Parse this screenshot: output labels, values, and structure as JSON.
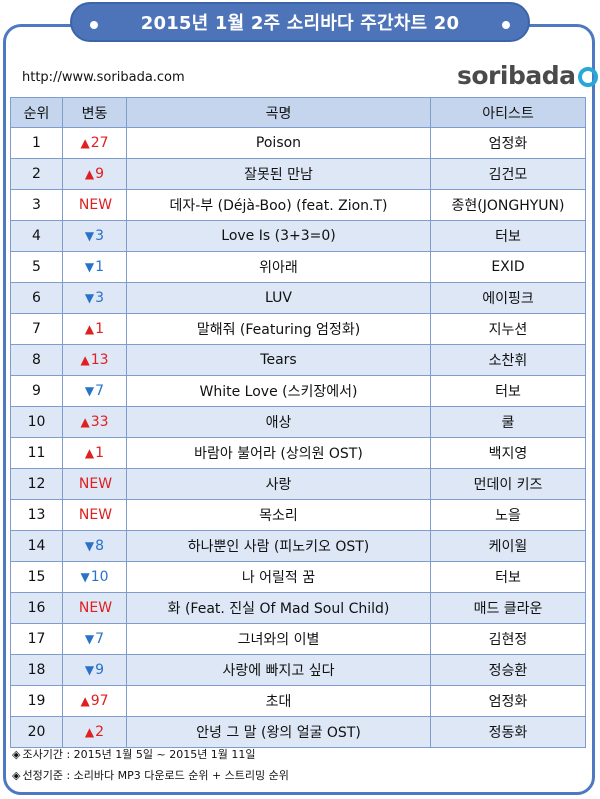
{
  "title": "2015년  1월  2주 소리바다 주간차트 20",
  "url": "http://www.soribada.com",
  "logo_text": "soribada",
  "headers": {
    "rank": "순위",
    "change": "변동",
    "song": "곡명",
    "artist": "아티스트"
  },
  "colors": {
    "up": "#e02020",
    "down": "#2a72c9",
    "new": "#e02020",
    "accent": "#4d74b8"
  },
  "rows": [
    {
      "rank": "1",
      "dir": "up",
      "arrow": "▲",
      "chg": "27",
      "song": "Poison",
      "artist": "엄정화"
    },
    {
      "rank": "2",
      "dir": "up",
      "arrow": "▲",
      "chg": "9",
      "song": "잘못된 만남",
      "artist": "김건모"
    },
    {
      "rank": "3",
      "dir": "new",
      "arrow": "",
      "chg": "NEW",
      "song": "데자-부 (Déjà-Boo) (feat. Zion.T)",
      "artist": "종현(JONGHYUN)"
    },
    {
      "rank": "4",
      "dir": "down",
      "arrow": "▼",
      "chg": "3",
      "song": "Love Is (3+3=0)",
      "artist": "터보"
    },
    {
      "rank": "5",
      "dir": "down",
      "arrow": "▼",
      "chg": "1",
      "song": "위아래",
      "artist": "EXID"
    },
    {
      "rank": "6",
      "dir": "down",
      "arrow": "▼",
      "chg": "3",
      "song": "LUV",
      "artist": "에이핑크"
    },
    {
      "rank": "7",
      "dir": "up",
      "arrow": "▲",
      "chg": "1",
      "song": "말해줘 (Featuring 엄정화)",
      "artist": "지누션"
    },
    {
      "rank": "8",
      "dir": "up",
      "arrow": "▲",
      "chg": "13",
      "song": "Tears",
      "artist": "소찬휘"
    },
    {
      "rank": "9",
      "dir": "down",
      "arrow": "▼",
      "chg": "7",
      "song": "White Love (스키장에서)",
      "artist": "터보"
    },
    {
      "rank": "10",
      "dir": "up",
      "arrow": "▲",
      "chg": "33",
      "song": "애상",
      "artist": "쿨"
    },
    {
      "rank": "11",
      "dir": "up",
      "arrow": "▲",
      "chg": "1",
      "song": "바람아 불어라 (상의원 OST)",
      "artist": "백지영"
    },
    {
      "rank": "12",
      "dir": "new",
      "arrow": "",
      "chg": "NEW",
      "song": "사랑",
      "artist": "먼데이 키즈"
    },
    {
      "rank": "13",
      "dir": "new",
      "arrow": "",
      "chg": "NEW",
      "song": "목소리",
      "artist": "노을"
    },
    {
      "rank": "14",
      "dir": "down",
      "arrow": "▼",
      "chg": "8",
      "song": "하나뿐인 사람 (피노키오 OST)",
      "artist": "케이윌"
    },
    {
      "rank": "15",
      "dir": "down",
      "arrow": "▼",
      "chg": "10",
      "song": "나 어릴적 꿈",
      "artist": "터보"
    },
    {
      "rank": "16",
      "dir": "new",
      "arrow": "",
      "chg": "NEW",
      "song": "화 (Feat. 진실 Of Mad Soul Child)",
      "artist": "매드 클라운"
    },
    {
      "rank": "17",
      "dir": "down",
      "arrow": "▼",
      "chg": "7",
      "song": "그녀와의 이별",
      "artist": "김현정"
    },
    {
      "rank": "18",
      "dir": "down",
      "arrow": "▼",
      "chg": "9",
      "song": "사랑에 빠지고 싶다",
      "artist": "정승환"
    },
    {
      "rank": "19",
      "dir": "up",
      "arrow": "▲",
      "chg": "97",
      "song": "초대",
      "artist": "엄정화"
    },
    {
      "rank": "20",
      "dir": "up",
      "arrow": "▲",
      "chg": "2",
      "song": "안녕 그 말 (왕의 얼굴 OST)",
      "artist": "정동화"
    }
  ],
  "notes": [
    {
      "mark": "◈",
      "text": "조사기간 : 2015년 1월 5일 ~ 2015년 1월 11일"
    },
    {
      "mark": "◈",
      "text": "선정기준 : 소리바다 MP3 다운로드 순위 + 스트리밍 순위"
    }
  ]
}
